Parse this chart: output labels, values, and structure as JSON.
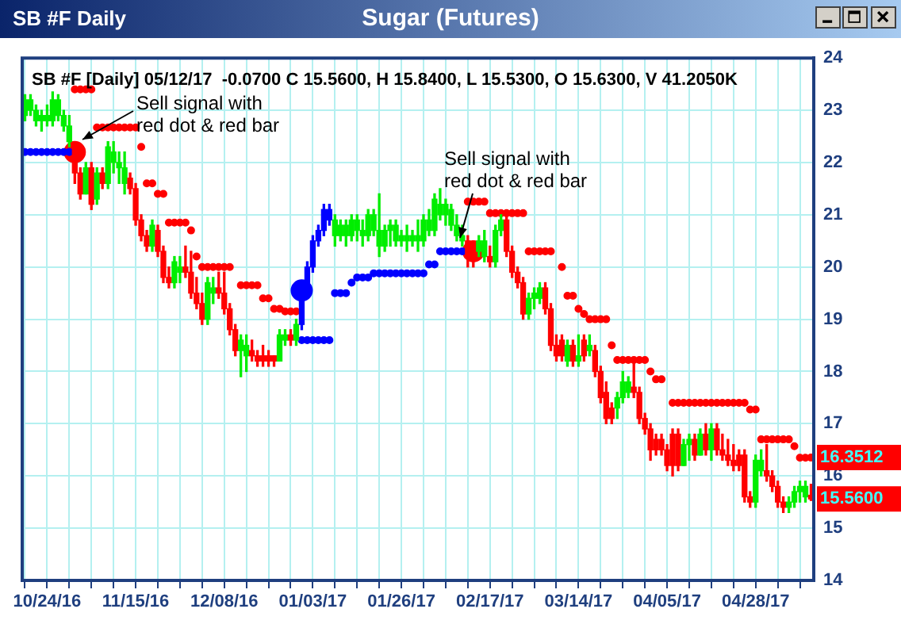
{
  "chart_data": {
    "type": "candlestick",
    "title": "Sugar (Futures)",
    "subtitle": "SB #F [Daily] 05/12/17  -0.0700 C 15.5600, H 15.8400, L 15.5300, O 15.6300, V 41.2050K",
    "annotations": [
      "SB #F Daily",
      "Sell signal with red dot & red bar",
      "Sell signal with red dot & red bar",
      "16.3512",
      "15.5600"
    ],
    "categories": [
      null,
      null,
      null,
      null,
      "10/24/16",
      null,
      null,
      null,
      null,
      null,
      null,
      null,
      null,
      null,
      null,
      null,
      null,
      null,
      null,
      null,
      "11/15/16",
      null,
      null,
      null,
      null,
      null,
      null,
      null,
      null,
      null,
      null,
      null,
      null,
      null,
      null,
      null,
      "12/08/16",
      null,
      null,
      null,
      null,
      null,
      null,
      null,
      null,
      null,
      null,
      null,
      null,
      null,
      null,
      null,
      "01/03/17",
      null,
      null,
      null,
      null,
      null,
      null,
      null,
      null,
      null,
      null,
      null,
      null,
      null,
      null,
      null,
      "01/26/17",
      null,
      null,
      null,
      null,
      null,
      null,
      null,
      null,
      null,
      null,
      null,
      null,
      null,
      null,
      null,
      "02/17/17",
      null,
      null,
      null,
      null,
      null,
      null,
      null,
      null,
      null,
      null,
      null,
      null,
      null,
      null,
      null,
      "03/14/17",
      null,
      null,
      null,
      null,
      null,
      null,
      null,
      null,
      null,
      null,
      null,
      null,
      null,
      null,
      null,
      "04/05/17",
      null,
      null,
      null,
      null,
      null,
      null,
      null,
      null,
      null,
      null,
      null,
      null,
      null,
      null,
      null,
      "04/28/17",
      null,
      null,
      null,
      null,
      null,
      null,
      null,
      null,
      null,
      null
    ],
    "ohlc": [
      [
        22.9,
        23.3,
        22.8,
        23.2
      ],
      [
        23.0,
        23.3,
        22.9,
        23.2
      ],
      [
        22.8,
        23.1,
        22.7,
        23.0
      ],
      [
        22.8,
        23.0,
        22.6,
        22.9
      ],
      [
        22.8,
        23.1,
        22.7,
        22.9
      ],
      [
        22.8,
        23.35,
        22.7,
        23.2
      ],
      [
        22.9,
        23.3,
        22.8,
        23.2
      ],
      [
        22.7,
        23.0,
        22.6,
        22.9
      ],
      [
        22.4,
        22.9,
        22.3,
        22.7
      ],
      [
        22.3,
        22.4,
        21.6,
        21.8
      ],
      [
        21.8,
        21.9,
        21.3,
        21.4
      ],
      [
        21.4,
        22.0,
        21.4,
        21.9
      ],
      [
        21.9,
        22.0,
        21.1,
        21.2
      ],
      [
        21.3,
        21.9,
        21.2,
        21.8
      ],
      [
        21.8,
        21.9,
        21.5,
        21.6
      ],
      [
        21.6,
        22.4,
        21.5,
        22.3
      ],
      [
        22.0,
        22.4,
        21.8,
        22.2
      ],
      [
        21.9,
        22.2,
        21.6,
        22.0
      ],
      [
        21.6,
        22.2,
        21.4,
        21.9
      ],
      [
        21.7,
        21.8,
        21.4,
        21.5
      ],
      [
        21.5,
        21.6,
        20.8,
        20.9
      ],
      [
        20.9,
        21.0,
        20.5,
        20.6
      ],
      [
        20.6,
        20.7,
        20.3,
        20.4
      ],
      [
        20.4,
        20.9,
        20.3,
        20.8
      ],
      [
        20.7,
        20.8,
        20.2,
        20.3
      ],
      [
        20.3,
        20.4,
        19.7,
        19.8
      ],
      [
        19.8,
        20.0,
        19.6,
        19.7
      ],
      [
        19.7,
        20.2,
        19.6,
        20.1
      ],
      [
        19.9,
        20.2,
        19.7,
        20.0
      ],
      [
        20.0,
        20.4,
        19.8,
        19.9
      ],
      [
        19.9,
        20.3,
        19.4,
        19.5
      ],
      [
        19.5,
        19.8,
        19.2,
        19.3
      ],
      [
        19.3,
        19.5,
        18.9,
        19.0
      ],
      [
        19.0,
        19.8,
        18.9,
        19.7
      ],
      [
        19.5,
        19.8,
        19.3,
        19.6
      ],
      [
        19.6,
        19.9,
        19.4,
        19.5
      ],
      [
        19.5,
        19.9,
        19.1,
        19.2
      ],
      [
        19.2,
        19.3,
        18.7,
        18.8
      ],
      [
        18.8,
        18.9,
        18.3,
        18.4
      ],
      [
        18.4,
        18.7,
        17.9,
        18.6
      ],
      [
        18.3,
        18.7,
        18.0,
        18.5
      ],
      [
        18.4,
        18.6,
        18.2,
        18.3
      ],
      [
        18.3,
        18.4,
        18.1,
        18.2
      ],
      [
        18.3,
        18.5,
        18.1,
        18.2
      ],
      [
        18.3,
        18.4,
        18.1,
        18.2
      ],
      [
        18.3,
        18.3,
        18.1,
        18.2
      ],
      [
        18.2,
        18.8,
        18.2,
        18.7
      ],
      [
        18.6,
        18.8,
        18.5,
        18.7
      ],
      [
        18.7,
        18.8,
        18.5,
        18.6
      ],
      [
        18.6,
        19.0,
        18.5,
        18.9
      ],
      [
        18.9,
        19.6,
        18.8,
        19.5
      ],
      [
        19.5,
        20.1,
        19.4,
        20.0
      ],
      [
        20.0,
        20.6,
        19.9,
        20.5
      ],
      [
        20.5,
        20.8,
        20.4,
        20.7
      ],
      [
        20.7,
        21.2,
        20.6,
        21.1
      ],
      [
        20.9,
        21.2,
        20.8,
        21.1
      ],
      [
        20.6,
        21.0,
        20.4,
        20.9
      ],
      [
        20.6,
        20.9,
        20.5,
        20.8
      ],
      [
        20.6,
        20.9,
        20.4,
        20.8
      ],
      [
        20.6,
        21.0,
        20.5,
        20.9
      ],
      [
        20.7,
        21.0,
        20.5,
        20.9
      ],
      [
        20.6,
        20.9,
        20.4,
        20.7
      ],
      [
        20.6,
        21.1,
        20.5,
        21.0
      ],
      [
        20.7,
        21.1,
        20.6,
        21.0
      ],
      [
        20.4,
        21.4,
        20.2,
        20.7
      ],
      [
        20.4,
        20.8,
        20.3,
        20.7
      ],
      [
        20.7,
        20.9,
        20.4,
        20.8
      ],
      [
        20.5,
        20.9,
        20.4,
        20.8
      ],
      [
        20.5,
        20.7,
        20.4,
        20.6
      ],
      [
        20.5,
        20.8,
        20.3,
        20.6
      ],
      [
        20.5,
        20.7,
        20.4,
        20.6
      ],
      [
        20.5,
        20.9,
        20.3,
        20.6
      ],
      [
        20.5,
        21.0,
        20.4,
        20.9
      ],
      [
        20.7,
        21.1,
        20.6,
        20.9
      ],
      [
        20.7,
        21.4,
        20.6,
        21.3
      ],
      [
        21.0,
        21.5,
        20.9,
        21.2
      ],
      [
        21.0,
        21.3,
        20.8,
        21.2
      ],
      [
        20.8,
        21.2,
        20.7,
        21.1
      ],
      [
        20.6,
        21.0,
        20.5,
        20.8
      ],
      [
        20.5,
        20.8,
        20.4,
        20.6
      ],
      [
        20.5,
        20.6,
        20.0,
        20.2
      ],
      [
        20.3,
        20.5,
        20.0,
        20.2
      ],
      [
        20.3,
        20.6,
        20.2,
        20.5
      ],
      [
        20.2,
        20.7,
        20.1,
        20.5
      ],
      [
        20.2,
        20.4,
        20.0,
        20.1
      ],
      [
        20.1,
        20.8,
        20.0,
        20.7
      ],
      [
        20.7,
        21.0,
        20.6,
        20.9
      ],
      [
        20.9,
        21.0,
        20.2,
        20.3
      ],
      [
        20.3,
        20.4,
        19.8,
        19.9
      ],
      [
        19.9,
        20.0,
        19.6,
        19.7
      ],
      [
        19.7,
        19.8,
        19.0,
        19.1
      ],
      [
        19.1,
        19.5,
        19.0,
        19.4
      ],
      [
        19.4,
        19.6,
        19.2,
        19.5
      ],
      [
        19.4,
        19.7,
        19.3,
        19.6
      ],
      [
        19.6,
        19.7,
        19.1,
        19.2
      ],
      [
        19.2,
        19.3,
        18.4,
        18.5
      ],
      [
        18.5,
        18.7,
        18.2,
        18.3
      ],
      [
        18.6,
        18.7,
        18.2,
        18.3
      ],
      [
        18.2,
        18.6,
        18.1,
        18.5
      ],
      [
        18.5,
        18.6,
        18.1,
        18.2
      ],
      [
        18.2,
        18.7,
        18.1,
        18.3
      ],
      [
        18.6,
        18.7,
        18.2,
        18.3
      ],
      [
        18.4,
        18.7,
        18.3,
        18.5
      ],
      [
        18.4,
        18.5,
        17.9,
        18.0
      ],
      [
        18.0,
        18.1,
        17.4,
        17.5
      ],
      [
        17.6,
        17.8,
        17.0,
        17.1
      ],
      [
        17.3,
        17.4,
        17.0,
        17.1
      ],
      [
        17.3,
        17.6,
        17.1,
        17.5
      ],
      [
        17.5,
        18.0,
        17.4,
        17.8
      ],
      [
        17.6,
        17.9,
        17.5,
        17.8
      ],
      [
        17.7,
        18.2,
        17.5,
        17.6
      ],
      [
        17.6,
        17.7,
        17.0,
        17.1
      ],
      [
        17.1,
        17.2,
        16.8,
        16.9
      ],
      [
        16.9,
        17.0,
        16.3,
        16.5
      ],
      [
        16.7,
        16.8,
        16.4,
        16.5
      ],
      [
        16.7,
        16.8,
        16.4,
        16.5
      ],
      [
        16.5,
        16.6,
        16.1,
        16.2
      ],
      [
        16.8,
        16.9,
        16.0,
        16.2
      ],
      [
        16.8,
        16.9,
        16.1,
        16.2
      ],
      [
        16.2,
        16.7,
        16.2,
        16.6
      ],
      [
        16.6,
        16.8,
        16.3,
        16.7
      ],
      [
        16.7,
        16.8,
        16.3,
        16.4
      ],
      [
        16.4,
        16.9,
        16.4,
        16.8
      ],
      [
        16.8,
        17.0,
        16.4,
        16.5
      ],
      [
        16.5,
        17.0,
        16.3,
        16.9
      ],
      [
        16.9,
        17.0,
        16.4,
        16.5
      ],
      [
        16.5,
        16.8,
        16.3,
        16.4
      ],
      [
        16.4,
        16.7,
        16.2,
        16.3
      ],
      [
        16.3,
        16.6,
        16.1,
        16.2
      ],
      [
        16.4,
        16.5,
        16.1,
        16.2
      ],
      [
        16.4,
        16.5,
        15.5,
        15.6
      ],
      [
        15.6,
        15.7,
        15.4,
        15.5
      ],
      [
        15.5,
        16.4,
        15.4,
        16.3
      ],
      [
        16.1,
        16.5,
        16.0,
        16.3
      ],
      [
        16.1,
        16.6,
        15.9,
        16.0
      ],
      [
        16.0,
        16.1,
        15.7,
        15.8
      ],
      [
        15.8,
        15.9,
        15.4,
        15.5
      ],
      [
        15.5,
        15.6,
        15.3,
        15.4
      ],
      [
        15.4,
        15.6,
        15.3,
        15.5
      ],
      [
        15.5,
        15.8,
        15.4,
        15.7
      ],
      [
        15.7,
        15.9,
        15.5,
        15.8
      ],
      [
        15.6,
        15.9,
        15.5,
        15.8
      ],
      [
        15.63,
        15.84,
        15.53,
        15.56
      ]
    ],
    "colors": [
      "#00ee00",
      "#00ee00",
      "#00ee00",
      "#00ee00",
      "#00ee00",
      "#00ee00",
      "#00ee00",
      "#00ee00",
      "#00ee00",
      "#ff0000",
      "#ff0000",
      "#00ee00",
      "#ff0000",
      "#00ee00",
      "#ff0000",
      "#00ee00",
      "#00ee00",
      "#00ee00",
      "#00ee00",
      "#ff0000",
      "#ff0000",
      "#ff0000",
      "#ff0000",
      "#00ee00",
      "#ff0000",
      "#ff0000",
      "#ff0000",
      "#00ee00",
      "#00ee00",
      "#ff0000",
      "#ff0000",
      "#ff0000",
      "#ff0000",
      "#00ee00",
      "#00ee00",
      "#ff0000",
      "#ff0000",
      "#ff0000",
      "#ff0000",
      "#00ee00",
      "#00ee00",
      "#ff0000",
      "#ff0000",
      "#ff0000",
      "#ff0000",
      "#ff0000",
      "#00ee00",
      "#00ee00",
      "#ff0000",
      "#00ee00",
      "#0000ff",
      "#0000ff",
      "#0000ff",
      "#0000ff",
      "#0000ff",
      "#0000ff",
      "#00ee00",
      "#00ee00",
      "#00ee00",
      "#00ee00",
      "#00ee00",
      "#00ee00",
      "#00ee00",
      "#00ee00",
      "#00ee00",
      "#00ee00",
      "#00ee00",
      "#00ee00",
      "#00ee00",
      "#00ee00",
      "#00ee00",
      "#00ee00",
      "#00ee00",
      "#00ee00",
      "#00ee00",
      "#00ee00",
      "#00ee00",
      "#00ee00",
      "#00ee00",
      "#00ee00",
      "#ff0000",
      "#ff0000",
      "#00ee00",
      "#00ee00",
      "#ff0000",
      "#00ee00",
      "#00ee00",
      "#ff0000",
      "#ff0000",
      "#ff0000",
      "#ff0000",
      "#00ee00",
      "#00ee00",
      "#00ee00",
      "#ff0000",
      "#ff0000",
      "#ff0000",
      "#ff0000",
      "#00ee00",
      "#ff0000",
      "#00ee00",
      "#ff0000",
      "#00ee00",
      "#ff0000",
      "#ff0000",
      "#ff0000",
      "#ff0000",
      "#00ee00",
      "#00ee00",
      "#00ee00",
      "#ff0000",
      "#ff0000",
      "#ff0000",
      "#ff0000",
      "#ff0000",
      "#ff0000",
      "#ff0000",
      "#ff0000",
      "#ff0000",
      "#00ee00",
      "#00ee00",
      "#ff0000",
      "#00ee00",
      "#ff0000",
      "#00ee00",
      "#ff0000",
      "#ff0000",
      "#ff0000",
      "#ff0000",
      "#ff0000",
      "#ff0000",
      "#ff0000",
      "#00ee00",
      "#00ee00",
      "#ff0000",
      "#ff0000",
      "#ff0000",
      "#ff0000",
      "#00ee00",
      "#00ee00",
      "#00ee00",
      "#00ee00",
      "#ff0000"
    ],
    "series": [
      {
        "type": "scatter",
        "color": "#ff0000",
        "values": [
          null,
          null,
          null,
          null,
          null,
          null,
          null,
          null,
          null,
          23.4,
          23.4,
          23.4,
          23.4,
          22.67,
          22.67,
          22.67,
          22.67,
          22.67,
          22.67,
          22.67,
          22.67,
          22.3,
          21.6,
          21.6,
          21.4,
          21.4,
          20.85,
          20.85,
          20.85,
          20.85,
          20.7,
          20.2,
          20.0,
          20.0,
          20.0,
          20.0,
          20.0,
          20.0,
          null,
          19.65,
          19.65,
          19.65,
          19.65,
          19.4,
          19.4,
          19.2,
          19.2,
          19.15,
          19.15,
          19.15,
          null,
          null,
          null,
          null,
          null,
          null,
          null,
          null,
          null,
          null,
          null,
          null,
          null,
          null,
          null,
          null,
          null,
          null,
          null,
          null,
          null,
          null,
          null,
          null,
          null,
          null,
          null,
          null,
          null,
          null,
          21.25,
          21.25,
          21.25,
          21.25,
          21.03,
          21.03,
          21.03,
          21.03,
          21.03,
          21.03,
          21.03,
          20.3,
          20.3,
          20.3,
          20.3,
          20.3,
          null,
          20.0,
          19.45,
          19.45,
          19.2,
          19.1,
          19.0,
          19.0,
          19.0,
          19.0,
          18.5,
          18.22,
          18.22,
          18.22,
          18.22,
          18.22,
          18.22,
          18.0,
          17.85,
          17.85,
          null,
          17.4,
          17.4,
          17.4,
          17.4,
          17.4,
          17.4,
          17.4,
          17.4,
          17.4,
          17.4,
          17.4,
          17.4,
          17.4,
          17.4,
          17.27,
          17.27,
          16.7,
          16.7,
          16.7,
          16.7,
          16.7,
          16.7,
          16.57,
          16.35,
          16.35,
          16.3512
        ]
      },
      {
        "type": "scatter",
        "color": "#0000ff",
        "values": [
          22.2,
          22.2,
          22.2,
          22.2,
          22.2,
          22.2,
          22.2,
          22.2,
          22.2,
          null,
          null,
          null,
          null,
          null,
          null,
          null,
          null,
          null,
          null,
          null,
          null,
          null,
          null,
          null,
          null,
          null,
          null,
          null,
          null,
          null,
          null,
          null,
          null,
          null,
          null,
          null,
          null,
          null,
          null,
          null,
          null,
          null,
          null,
          null,
          null,
          null,
          null,
          null,
          null,
          null,
          18.6,
          18.6,
          18.6,
          18.6,
          18.6,
          18.6,
          19.5,
          19.5,
          19.5,
          19.7,
          19.8,
          19.8,
          19.8,
          19.88,
          19.88,
          19.88,
          19.88,
          19.88,
          19.88,
          19.88,
          19.88,
          19.88,
          19.88,
          20.05,
          20.05,
          20.3,
          20.3,
          20.3,
          20.3,
          20.3,
          null,
          null,
          null,
          null,
          null,
          null,
          null,
          null,
          null,
          null,
          null,
          null,
          null,
          null,
          null,
          null,
          null,
          null,
          null,
          null,
          null,
          null,
          null,
          null,
          null,
          null,
          null,
          null,
          null,
          null,
          null,
          null,
          null,
          null,
          null,
          null,
          null,
          null,
          null,
          null,
          null,
          null,
          null,
          null,
          null,
          null,
          null,
          null,
          null,
          null,
          null,
          null,
          null,
          null,
          null,
          null,
          null,
          null,
          null,
          null,
          null,
          null,
          null
        ]
      },
      {
        "type": "scatter",
        "color": "#ff0000",
        "values": [
          null,
          null,
          null,
          null,
          null,
          null,
          null,
          null,
          null,
          22.2,
          null,
          null,
          null,
          null,
          null,
          null,
          null,
          null,
          null,
          null,
          null,
          null,
          null,
          null,
          null,
          null,
          null,
          null,
          null,
          null,
          null,
          null,
          null,
          null,
          null,
          null,
          null,
          null,
          null,
          null,
          null,
          null,
          null,
          null,
          null,
          null,
          null,
          null,
          null,
          null,
          null,
          null,
          null,
          null,
          null,
          null,
          null,
          null,
          null,
          null,
          null,
          null,
          null,
          null,
          null,
          null,
          null,
          null,
          null,
          null,
          null,
          null,
          null,
          null,
          null,
          null,
          null,
          null,
          null,
          null,
          null,
          20.3,
          null,
          null,
          null,
          null,
          null,
          null,
          null,
          null,
          null,
          null,
          null,
          null,
          null,
          null,
          null,
          null,
          null,
          null,
          null,
          null,
          null,
          null,
          null,
          null,
          null,
          null,
          null,
          null,
          null,
          null,
          null,
          null,
          null,
          null,
          null,
          null,
          null,
          null,
          null,
          null,
          null,
          null,
          null,
          null,
          null,
          null,
          null,
          null,
          null,
          null,
          null,
          null,
          null,
          null,
          null,
          null,
          null,
          null,
          null,
          null,
          null
        ]
      },
      {
        "type": "scatter",
        "color": "#0000ff",
        "values": [
          null,
          null,
          null,
          null,
          null,
          null,
          null,
          null,
          null,
          null,
          null,
          null,
          null,
          null,
          null,
          null,
          null,
          null,
          null,
          null,
          null,
          null,
          null,
          null,
          null,
          null,
          null,
          null,
          null,
          null,
          null,
          null,
          null,
          null,
          null,
          null,
          null,
          null,
          null,
          null,
          null,
          null,
          null,
          null,
          null,
          null,
          null,
          null,
          null,
          null,
          19.55,
          null,
          null,
          null,
          null,
          null,
          null,
          null,
          null,
          null,
          null,
          null,
          null,
          null,
          null,
          null,
          null,
          null,
          null,
          null,
          null,
          null,
          null,
          null,
          null,
          null,
          null,
          null,
          null,
          null,
          null,
          null,
          null,
          null,
          null,
          null,
          null,
          null,
          null,
          null,
          null,
          null,
          null,
          null,
          null,
          null,
          null,
          null,
          null,
          null,
          null,
          null,
          null,
          null,
          null,
          null,
          null,
          null,
          null,
          null,
          null,
          null,
          null,
          null,
          null,
          null,
          null,
          null,
          null,
          null,
          null,
          null,
          null,
          null,
          null,
          null,
          null,
          null,
          null,
          null,
          null,
          null,
          null,
          null,
          null,
          null,
          null,
          null,
          null,
          null,
          null,
          null,
          null
        ]
      }
    ],
    "marker": "circle",
    "ylim": [
      14,
      24
    ],
    "yticks": [
      14,
      15,
      16,
      17,
      18,
      19,
      20,
      21,
      22,
      23,
      24
    ],
    "grid": true
  }
}
